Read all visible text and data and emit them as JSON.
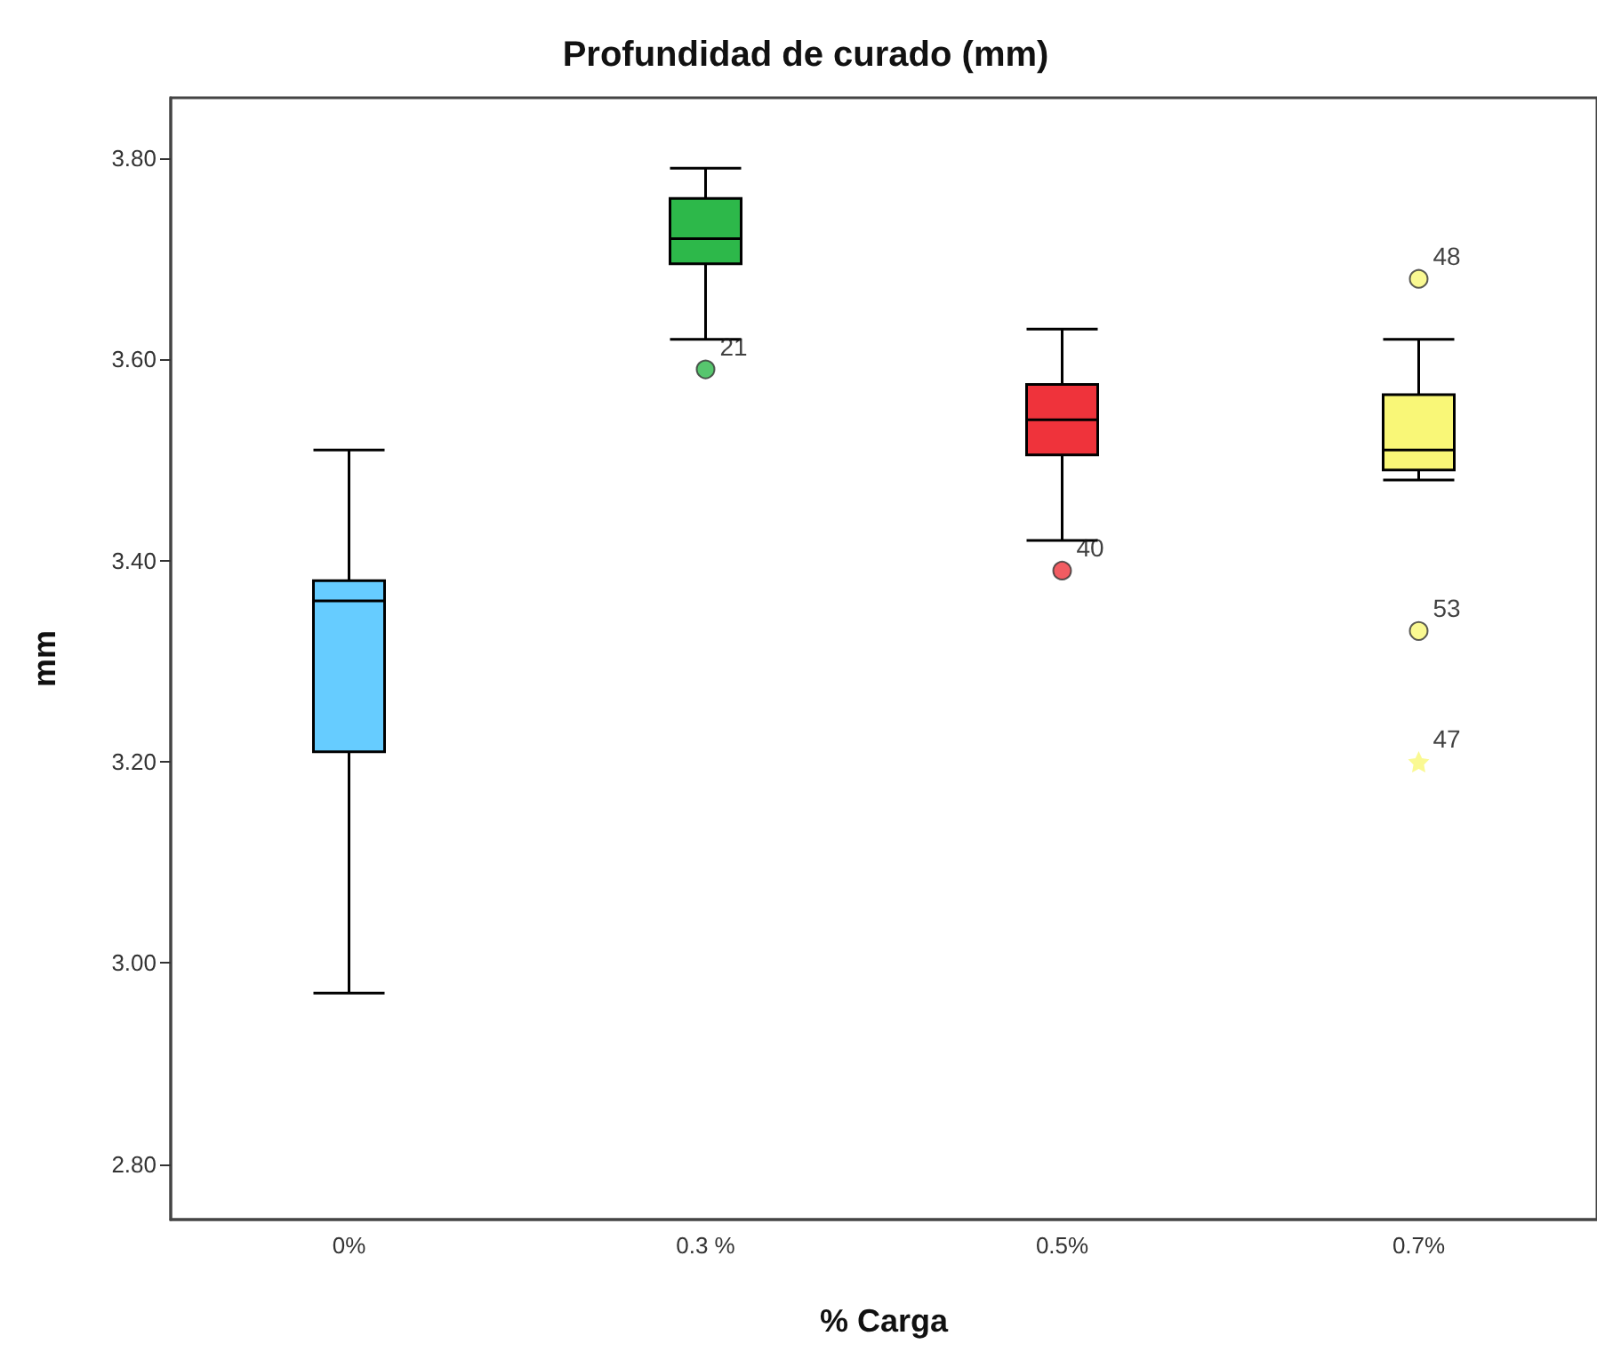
{
  "chart_data": {
    "type": "box",
    "title": "Profundidad de curado (mm)",
    "xlabel": "% Carga",
    "ylabel": "mm",
    "categories": [
      "0%",
      "0.3 %",
      "0.5%",
      "0.7%"
    ],
    "colors": [
      "#66ccff",
      "#2db84a",
      "#ef333b",
      "#f9f777"
    ],
    "boxes": [
      {
        "low": 2.97,
        "q1": 3.21,
        "median": 3.36,
        "q3": 3.38,
        "high": 3.51
      },
      {
        "low": 3.62,
        "q1": 3.695,
        "median": 3.72,
        "q3": 3.76,
        "high": 3.79
      },
      {
        "low": 3.42,
        "q1": 3.505,
        "median": 3.54,
        "q3": 3.575,
        "high": 3.63
      },
      {
        "low": 3.48,
        "q1": 3.49,
        "median": 3.51,
        "q3": 3.565,
        "high": 3.62
      }
    ],
    "series": [
      {
        "type": "scatter",
        "x": [
          "0.3 %",
          "0.5%",
          "0.7%",
          "0.7%"
        ],
        "values": [
          3.59,
          3.39,
          3.68,
          3.33
        ],
        "marker": "circle",
        "colors": [
          "#2db84a",
          "#ef333b",
          "#f9f777",
          "#f9f777"
        ]
      },
      {
        "type": "scatter",
        "x": [
          "0.7%"
        ],
        "values": [
          3.2
        ],
        "marker": "star",
        "color": "#f9f777"
      }
    ],
    "ylim": [
      2.745,
      3.86
    ],
    "yticks": [
      {
        "value": 2.8,
        "label": "2.80"
      },
      {
        "value": 3.0,
        "label": "3.00"
      },
      {
        "value": 3.2,
        "label": "3.20"
      },
      {
        "value": 3.4,
        "label": "3.40"
      },
      {
        "value": 3.6,
        "label": "3.60"
      },
      {
        "value": 3.8,
        "label": "3.80"
      }
    ],
    "annotations": [
      {
        "text": "21",
        "x": "0.3 %",
        "y": 3.59
      },
      {
        "text": "40",
        "x": "0.5%",
        "y": 3.39
      },
      {
        "text": "48",
        "x": "0.7%",
        "y": 3.68
      },
      {
        "text": "53",
        "x": "0.7%",
        "y": 3.33
      },
      {
        "text": "47",
        "x": "0.7%",
        "y": 3.2
      }
    ],
    "grid": false
  }
}
